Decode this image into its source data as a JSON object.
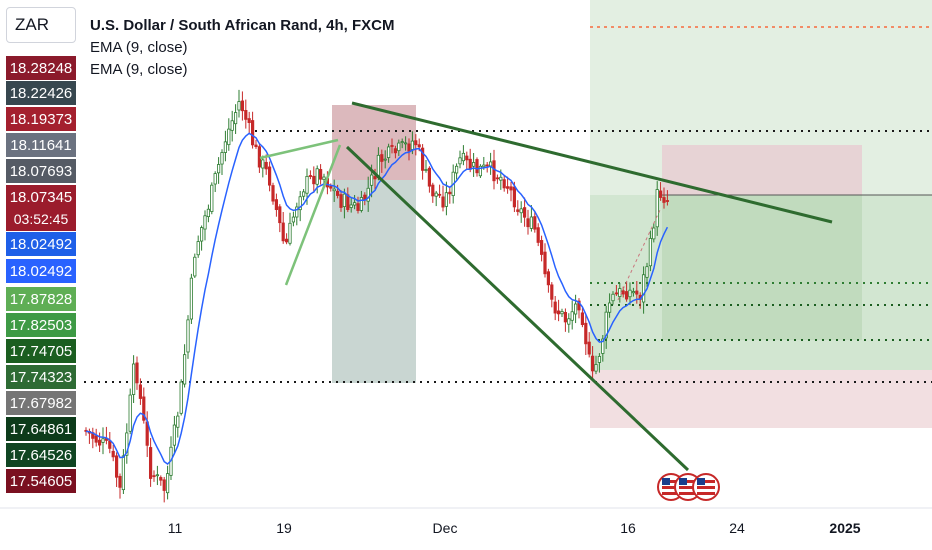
{
  "symbol": "ZAR",
  "legend": {
    "title": "U.S. Dollar / South African Rand, 4h, FXCM",
    "indicators": [
      "EMA (9, close)",
      "EMA (9, close)"
    ]
  },
  "price_tags": [
    {
      "label": "18.28248",
      "color": "#8b1a2b"
    },
    {
      "label": "18.22426",
      "color": "#37474f"
    },
    {
      "label": "18.19373",
      "color": "#a4202e"
    },
    {
      "label": "18.11641",
      "color": "#6b7280"
    },
    {
      "label": "18.07693",
      "color": "#555b65"
    },
    {
      "label": "18.07345",
      "color": "#9b1c2c"
    },
    {
      "label": "03:52:45",
      "color": "#9b1c2c"
    },
    {
      "label": "18.02492",
      "color": "#1e5fe8"
    },
    {
      "label": "18.02492",
      "color": "#2962ff"
    },
    {
      "label": "17.87828",
      "color": "#5fae55"
    },
    {
      "label": "17.82503",
      "color": "#3e9a45"
    },
    {
      "label": "17.74705",
      "color": "#1b5e20"
    },
    {
      "label": "17.74323",
      "color": "#2e6b34"
    },
    {
      "label": "17.67982",
      "color": "#757575"
    },
    {
      "label": "17.64861",
      "color": "#0d3b1a"
    },
    {
      "label": "17.64526",
      "color": "#104522"
    },
    {
      "label": "17.54605",
      "color": "#7a1020"
    }
  ],
  "x_axis": {
    "labels": [
      "11",
      "19",
      "Dec",
      "16",
      "24",
      "2025"
    ]
  },
  "colors": {
    "up": "#2e7d32",
    "down": "#c62828",
    "ema": "#2962ff",
    "trendline": "#2e6b2f",
    "target_zone": "#d7e9d6",
    "stop_zone": "#eed6d8",
    "resistance_dotted": "#f28b66"
  },
  "events": [
    "us-flag-icon",
    "us-flag-icon",
    "us-flag-icon"
  ]
}
